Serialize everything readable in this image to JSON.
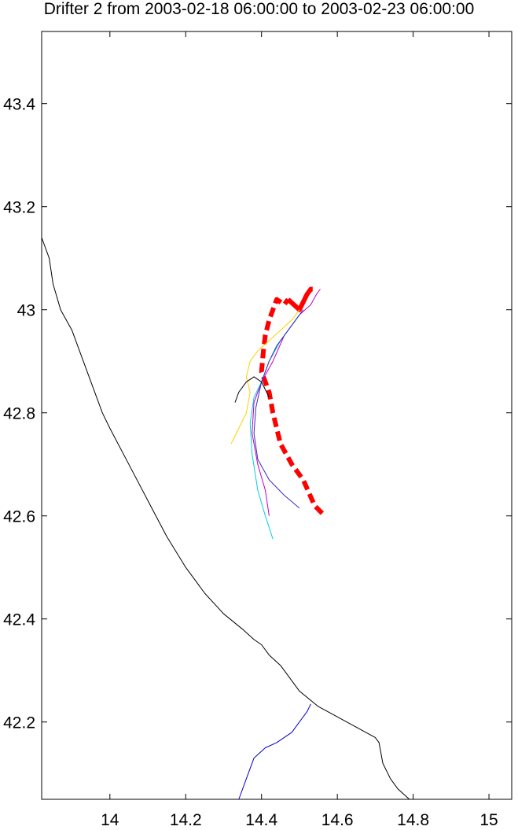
{
  "chart_data": {
    "type": "line",
    "title": "Drifter 2 from 2003-02-18 06:00:00 to 2003-02-23 06:00:00",
    "xlabel": "",
    "ylabel": "",
    "xlim": [
      13.82,
      15.06
    ],
    "ylim": [
      42.05,
      43.54
    ],
    "xticks": [
      14,
      14.2,
      14.4,
      14.6,
      14.8,
      15
    ],
    "xtick_labels": [
      "14",
      "14.2",
      "14.4",
      "14.6",
      "14.8",
      "15"
    ],
    "yticks": [
      42.2,
      42.4,
      42.6,
      42.8,
      43,
      43.2,
      43.4
    ],
    "ytick_labels": [
      "42.2",
      "42.4",
      "42.6",
      "42.8",
      "43",
      "43.2",
      "43.4"
    ],
    "grid": false,
    "series": [
      {
        "color": "#000000",
        "style": "line",
        "width": 1,
        "x": [
          13.82,
          13.84,
          13.85,
          13.87,
          13.9,
          13.92,
          13.95,
          13.98,
          14.0,
          14.05,
          14.1,
          14.15,
          14.2,
          14.25,
          14.3,
          14.35,
          14.38,
          14.4,
          14.42,
          14.45,
          14.47,
          14.5,
          14.55,
          14.6,
          14.65,
          14.7,
          14.71,
          14.72,
          14.74,
          14.76,
          14.79
        ],
        "y": [
          43.14,
          43.1,
          43.05,
          43.0,
          42.96,
          42.92,
          42.86,
          42.8,
          42.77,
          42.7,
          42.63,
          42.56,
          42.5,
          42.45,
          42.41,
          42.38,
          42.36,
          42.35,
          42.33,
          42.31,
          42.29,
          42.26,
          42.23,
          42.21,
          42.19,
          42.17,
          42.16,
          42.12,
          42.09,
          42.07,
          42.05
        ]
      },
      {
        "color": "#0000cc",
        "style": "line",
        "width": 1,
        "x": [
          14.34,
          14.36,
          14.38,
          14.41,
          14.44,
          14.46,
          14.48,
          14.5,
          14.52,
          14.53
        ],
        "y": [
          42.05,
          42.09,
          42.13,
          42.15,
          42.16,
          42.17,
          42.18,
          42.2,
          42.22,
          42.235
        ]
      },
      {
        "color": "#ff0000",
        "style": "dash",
        "width": 6,
        "x": [
          14.56,
          14.54,
          14.51,
          14.48,
          14.45,
          14.43,
          14.42,
          14.4,
          14.405,
          14.41,
          14.42,
          14.43,
          14.44,
          14.46,
          14.47
        ],
        "y": [
          42.605,
          42.62,
          42.67,
          42.7,
          42.74,
          42.8,
          42.84,
          42.88,
          42.92,
          42.95,
          42.98,
          43.0,
          43.02,
          43.01,
          43.02
        ]
      },
      {
        "color": "#ff0000",
        "style": "solid",
        "width": 6,
        "x": [
          14.47,
          14.5,
          14.51,
          14.52,
          14.53,
          14.535
        ],
        "y": [
          43.02,
          43.0,
          43.015,
          43.03,
          43.04,
          43.04
        ]
      },
      {
        "color": "#c000c0",
        "style": "line",
        "width": 1,
        "x": [
          14.42,
          14.41,
          14.39,
          14.375,
          14.38,
          14.4,
          14.43,
          14.46,
          14.5,
          14.53,
          14.545,
          14.555
        ],
        "y": [
          42.6,
          42.65,
          42.7,
          42.76,
          42.82,
          42.86,
          42.9,
          42.95,
          42.99,
          43.01,
          43.03,
          43.04
        ]
      },
      {
        "color": "#00d0e0",
        "style": "line",
        "width": 1,
        "x": [
          14.43,
          14.41,
          14.39,
          14.375,
          14.37,
          14.38,
          14.4,
          14.42,
          14.45,
          14.48,
          14.5
        ],
        "y": [
          42.555,
          42.6,
          42.65,
          42.72,
          42.78,
          42.83,
          42.86,
          42.9,
          42.94,
          42.97,
          42.99
        ]
      },
      {
        "color": "#3030c0",
        "style": "line",
        "width": 1,
        "x": [
          14.5,
          14.46,
          14.42,
          14.39,
          14.38,
          14.385,
          14.4,
          14.42,
          14.44,
          14.47,
          14.49,
          14.51
        ],
        "y": [
          42.615,
          42.64,
          42.67,
          42.71,
          42.76,
          42.81,
          42.86,
          42.9,
          42.93,
          42.96,
          42.98,
          43.0
        ]
      },
      {
        "color": "#ffd000",
        "style": "line",
        "width": 1,
        "x": [
          14.32,
          14.34,
          14.36,
          14.37,
          14.36,
          14.37,
          14.39,
          14.42,
          14.45,
          14.48,
          14.5
        ],
        "y": [
          42.74,
          42.77,
          42.8,
          42.84,
          42.87,
          42.9,
          42.92,
          42.94,
          42.96,
          42.98,
          43.0
        ]
      },
      {
        "color": "#000000",
        "style": "line",
        "width": 1,
        "x": [
          14.33,
          14.34,
          14.36,
          14.38,
          14.4,
          14.42
        ],
        "y": [
          42.82,
          42.84,
          42.86,
          42.87,
          42.86,
          42.83
        ]
      }
    ]
  }
}
